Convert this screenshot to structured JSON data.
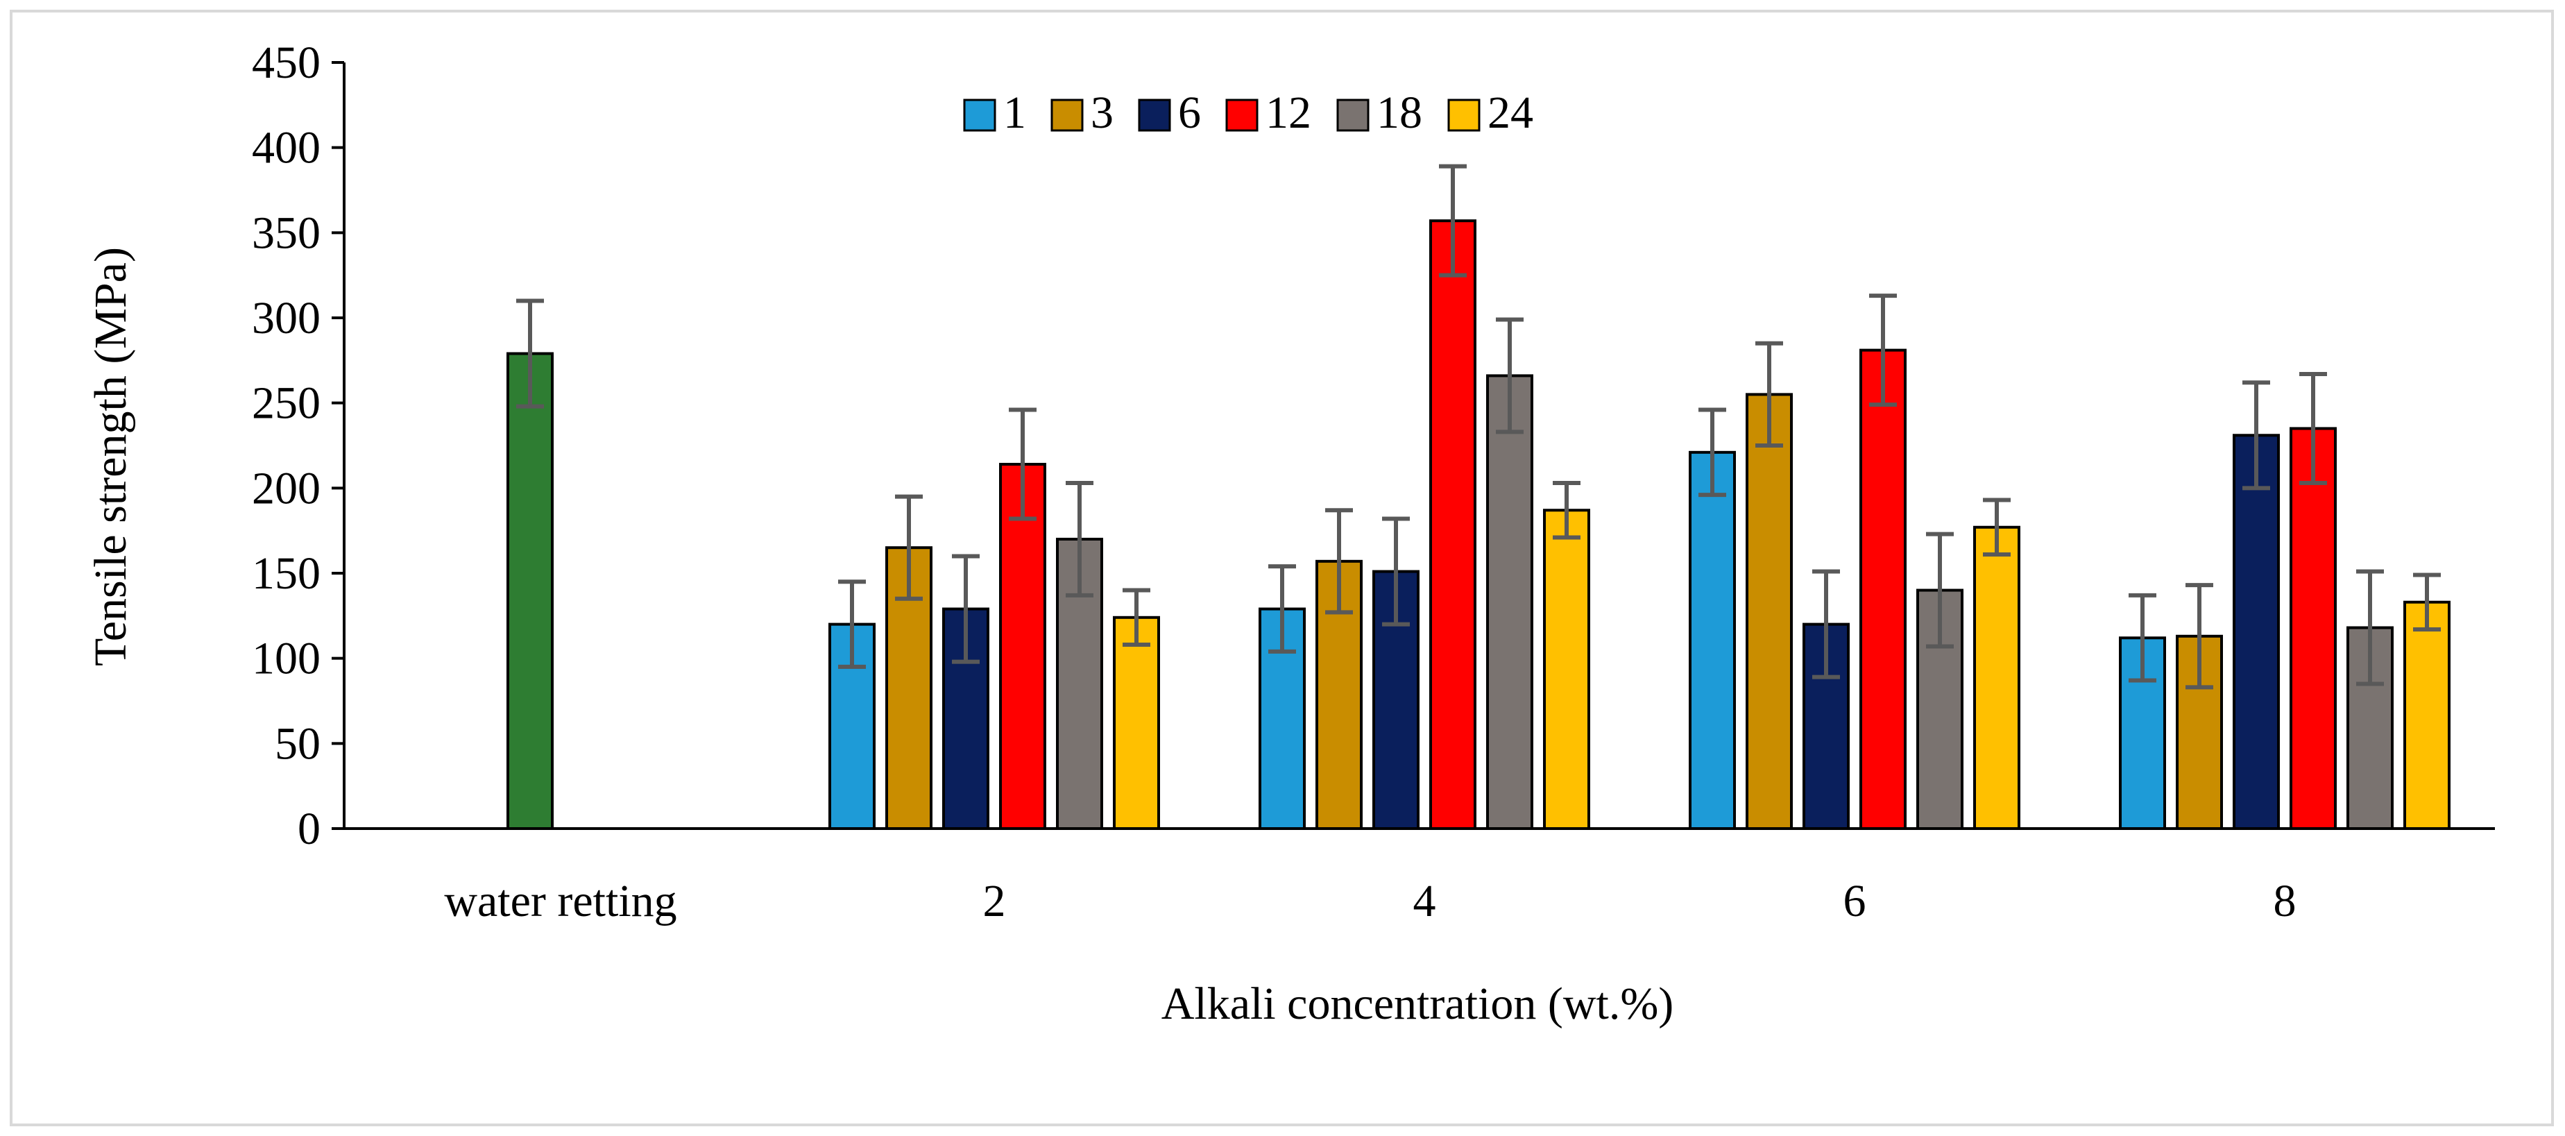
{
  "chart_data": {
    "type": "bar",
    "title": "",
    "xlabel": "Alkali concentration (wt.%)",
    "ylabel": "Tensile strength (MPa)",
    "ylim": [
      0,
      450
    ],
    "yticks": [
      "0",
      "50",
      "100",
      "150",
      "200",
      "250",
      "300",
      "350",
      "400",
      "450"
    ],
    "categories": [
      "water retting",
      "2",
      "4",
      "6",
      "8"
    ],
    "legend_position": "top-center",
    "reference": {
      "name": "water retting",
      "category": "water retting",
      "value": 279,
      "error": 31,
      "color": "#2e7d32"
    },
    "series": [
      {
        "name": "1",
        "color": "#1e9bd7",
        "values": [
          null,
          120,
          129,
          221,
          112
        ],
        "errors": [
          null,
          25,
          25,
          25,
          25
        ]
      },
      {
        "name": "3",
        "color": "#c98d00",
        "values": [
          null,
          165,
          157,
          255,
          113
        ],
        "errors": [
          null,
          30,
          30,
          30,
          30
        ]
      },
      {
        "name": "6",
        "color": "#0a1f5c",
        "values": [
          null,
          129,
          151,
          120,
          231
        ],
        "errors": [
          null,
          31,
          31,
          31,
          31
        ]
      },
      {
        "name": "12",
        "color": "#ff0000",
        "values": [
          null,
          214,
          357,
          281,
          235
        ],
        "errors": [
          null,
          32,
          32,
          32,
          32
        ]
      },
      {
        "name": "18",
        "color": "#7a7370",
        "values": [
          null,
          170,
          266,
          140,
          118
        ],
        "errors": [
          null,
          33,
          33,
          33,
          33
        ]
      },
      {
        "name": "24",
        "color": "#ffc000",
        "values": [
          null,
          124,
          187,
          177,
          133
        ],
        "errors": [
          null,
          16,
          16,
          16,
          16
        ]
      }
    ]
  }
}
